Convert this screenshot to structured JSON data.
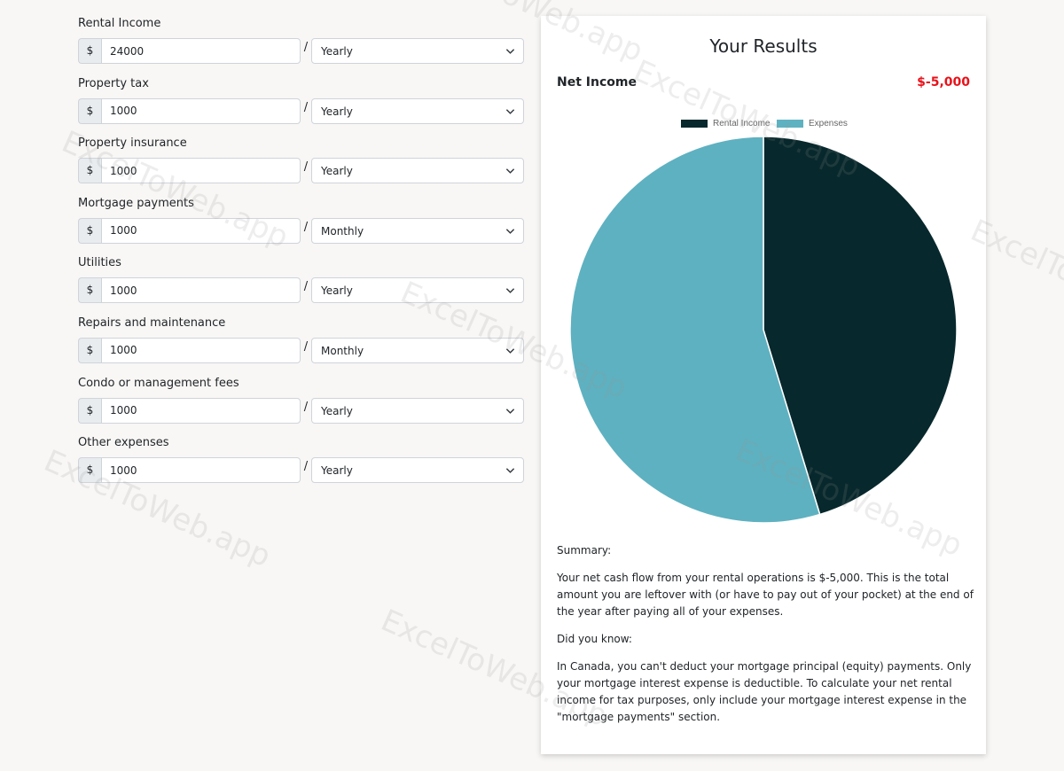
{
  "form": {
    "currency_symbol": "$",
    "separator": "/",
    "fields": [
      {
        "label": "Rental Income",
        "value": "24000",
        "period": "Yearly"
      },
      {
        "label": "Property tax",
        "value": "1000",
        "period": "Yearly"
      },
      {
        "label": "Property insurance",
        "value": "1000",
        "period": "Yearly"
      },
      {
        "label": "Mortgage payments",
        "value": "1000",
        "period": "Monthly"
      },
      {
        "label": "Utilities",
        "value": "1000",
        "period": "Yearly"
      },
      {
        "label": "Repairs and maintenance",
        "value": "1000",
        "period": "Monthly"
      },
      {
        "label": "Condo or management fees",
        "value": "1000",
        "period": "Yearly"
      },
      {
        "label": "Other expenses",
        "value": "1000",
        "period": "Yearly"
      }
    ]
  },
  "results": {
    "title": "Your Results",
    "net_income_label": "Net Income",
    "net_income_value": "$-5,000",
    "summary_heading": "Summary:",
    "summary_text": "Your net cash flow from your rental operations is $-5,000. This is the total amount you are leftover with (or have to pay out of your pocket) at the end of the year after paying all of your expenses.",
    "did_you_know_heading": "Did you know:",
    "did_you_know_text": "In Canada, you can't deduct your mortgage principal (equity) payments. Only your mortgage interest expense is deductible. To calculate your net rental income for tax purposes, only include your mortgage interest expense in the \"mortgage payments\" section."
  },
  "chart_data": {
    "type": "pie",
    "legend_position": "top",
    "labels": [
      "Rental Income",
      "Expenses"
    ],
    "values": [
      24000,
      29000
    ],
    "colors": [
      "#07282c",
      "#5eb1c0"
    ]
  },
  "watermark": "ExcelToWeb.app"
}
